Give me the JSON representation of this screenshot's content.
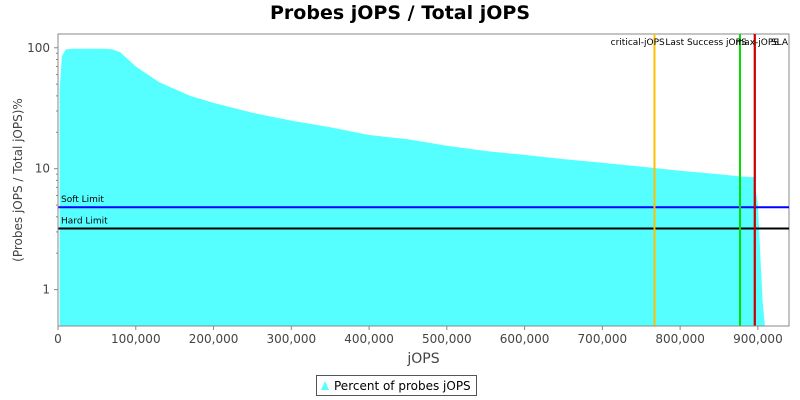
{
  "chart_data": {
    "type": "area",
    "title": "Probes jOPS / Total jOPS",
    "xlabel": "jOPS",
    "ylabel": "(Probes jOPS / Total jOPS)%",
    "y_scale": "log",
    "xlim": [
      0,
      940000
    ],
    "ylim": [
      0.5,
      130
    ],
    "x_ticks": [
      0,
      100000,
      200000,
      300000,
      400000,
      500000,
      600000,
      700000,
      800000,
      900000
    ],
    "x_tick_labels": [
      "0",
      "100,000",
      "200,000",
      "300,000",
      "400,000",
      "500,000",
      "600,000",
      "700,000",
      "800,000",
      "900,000"
    ],
    "y_ticks": [
      1,
      10,
      100
    ],
    "y_tick_labels": [
      "1",
      "10",
      "100"
    ],
    "series": [
      {
        "name": "Percent of probes jOPS",
        "color": "#55ffff",
        "x": [
          2000,
          5000,
          10000,
          20000,
          40000,
          60000,
          70000,
          80000,
          100000,
          130000,
          170000,
          200000,
          250000,
          300000,
          350000,
          400000,
          450000,
          500000,
          550000,
          600000,
          650000,
          700000,
          750000,
          800000,
          850000,
          880000,
          895000,
          900000,
          903000,
          906000,
          909000
        ],
        "y": [
          45,
          85,
          97,
          98,
          98,
          98,
          97,
          92,
          70,
          52,
          40,
          35,
          29,
          25,
          22,
          19,
          17.5,
          15.5,
          14,
          13,
          12,
          11.2,
          10.4,
          9.6,
          9,
          8.6,
          8.5,
          5,
          2,
          0.8,
          0.5
        ]
      }
    ],
    "horizontal_lines": [
      {
        "label": "Soft Limit",
        "y": 4.8,
        "color": "#0000ff"
      },
      {
        "label": "Hard Limit",
        "y": 3.2,
        "color": "#000000"
      }
    ],
    "vertical_lines": [
      {
        "label": "critical-jOPS",
        "x": 767000,
        "color": "#ffc000"
      },
      {
        "label": "Last Success jOPS",
        "x": 877000,
        "color": "#00e000"
      },
      {
        "label": "max-jOPS",
        "x": 896000,
        "color": "#cc0000"
      },
      {
        "label": "SLA",
        "x": 896000,
        "color": "#cc0000"
      }
    ],
    "grid": false,
    "legend_position": "bottom"
  }
}
